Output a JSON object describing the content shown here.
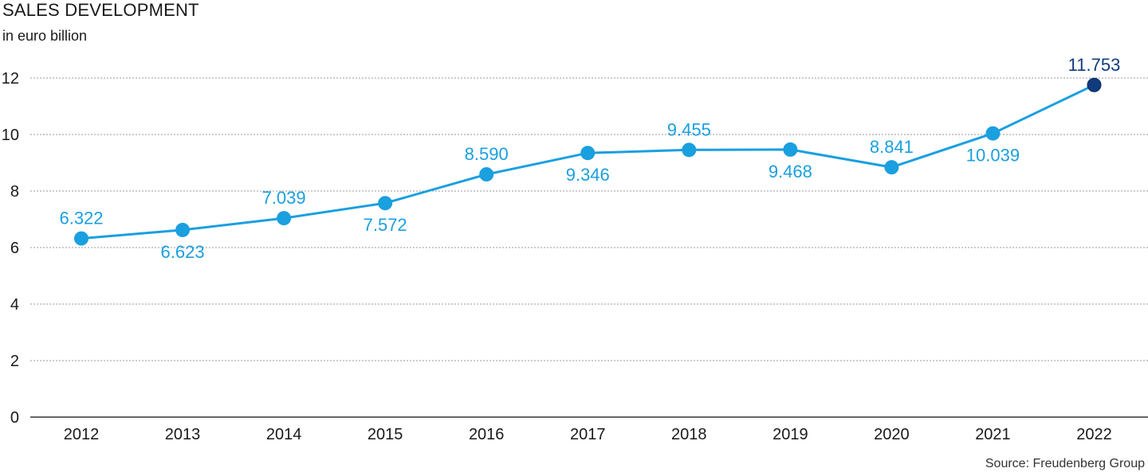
{
  "chart_data": {
    "type": "line",
    "title": "SALES DEVELOPMENT",
    "subtitle": "in euro billion",
    "source": "Source: Freudenberg Group",
    "x": [
      "2012",
      "2013",
      "2014",
      "2015",
      "2016",
      "2017",
      "2018",
      "2019",
      "2020",
      "2021",
      "2022"
    ],
    "series": [
      {
        "values": [
          6.322,
          6.623,
          7.039,
          7.572,
          8.59,
          9.346,
          9.455,
          9.468,
          8.841,
          10.039,
          11.753
        ],
        "labels": [
          "6.322",
          "6.623",
          "7.039",
          "7.572",
          "8.590",
          "9.346",
          "9.455",
          "9.468",
          "8.841",
          "10.039",
          "11.753"
        ],
        "label_position": [
          "above",
          "below",
          "above",
          "below",
          "above",
          "below",
          "above",
          "below",
          "above",
          "below",
          "above"
        ]
      }
    ],
    "yticks": [
      "0",
      "2",
      "4",
      "6",
      "8",
      "10",
      "12"
    ],
    "ylim": [
      0,
      12
    ],
    "grid": "horizontal-dotted",
    "colors": {
      "line": "#1a9fdf",
      "point": "#1a9fdf",
      "highlight_point": "#0f3c7f",
      "highlight_label": "#0f3c7f",
      "label": "#1a9fdf"
    },
    "highlight_index": 10
  }
}
